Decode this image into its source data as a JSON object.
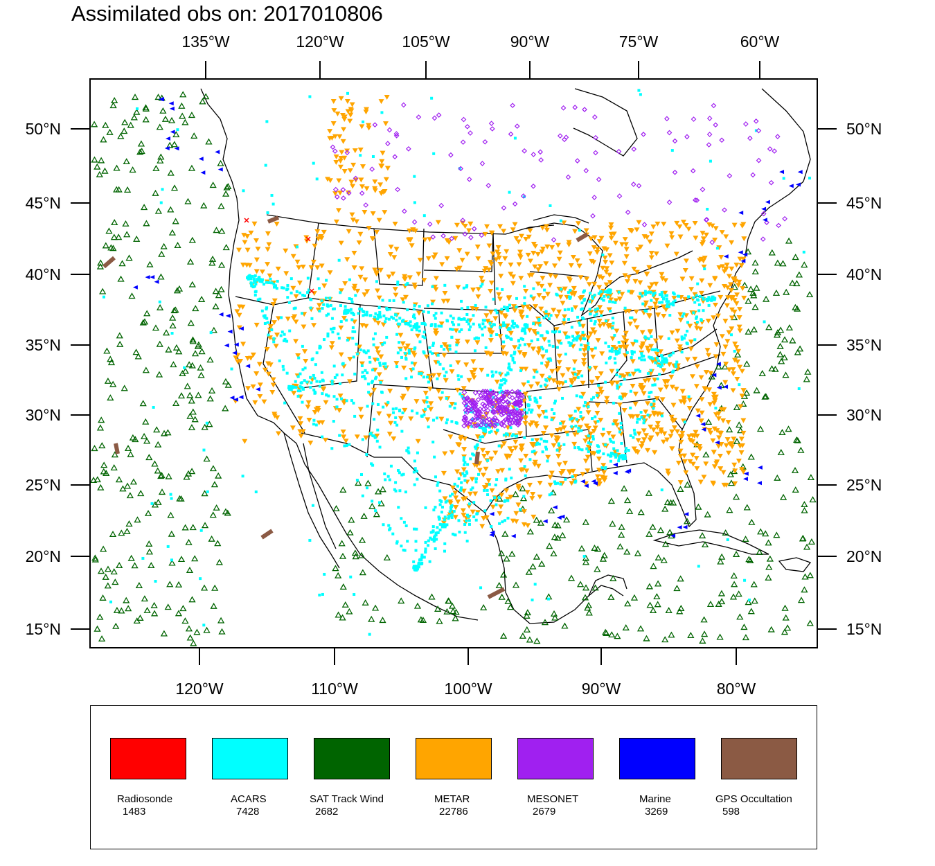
{
  "title": "Assimilated obs on: 2017010806",
  "map": {
    "top_lon_labels": [
      "135°W",
      "120°W",
      "105°W",
      "90°W",
      "75°W",
      "60°W"
    ],
    "bottom_lon_labels": [
      "120°W",
      "110°W",
      "100°W",
      "90°W",
      "80°W"
    ],
    "lat_labels": [
      "50°N",
      "45°N",
      "40°N",
      "35°N",
      "30°N",
      "25°N",
      "20°N",
      "15°N"
    ]
  },
  "legend": [
    {
      "name": "Radiosonde",
      "count": "1483",
      "color": "#ff0000",
      "marker": "x"
    },
    {
      "name": "ACARS",
      "count": "7428",
      "color": "#00ffff",
      "marker": "square"
    },
    {
      "name": "SAT Track Wind",
      "count": "2682",
      "color": "#006400",
      "marker": "triangle-up"
    },
    {
      "name": "METAR",
      "count": "22786",
      "color": "#ffa500",
      "marker": "triangle-down"
    },
    {
      "name": "MESONET",
      "count": "2679",
      "color": "#a020f0",
      "marker": "diamond"
    },
    {
      "name": "Marine",
      "count": "3269",
      "color": "#0000ff",
      "marker": "triangle-left"
    },
    {
      "name": "GPS Occultation",
      "count": "598",
      "color": "#8b5a44",
      "marker": "bar"
    }
  ]
}
